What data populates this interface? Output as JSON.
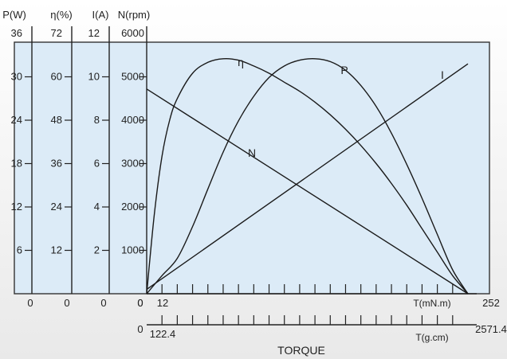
{
  "chart_data": {
    "type": "line",
    "title": "",
    "xlabel": "TORQUE",
    "x_axes": [
      {
        "unit": "T(mN.m)",
        "min": 0,
        "max": 252,
        "tick_step": 12,
        "tick_labels": [
          "0",
          "12",
          "252"
        ]
      },
      {
        "unit": "T(g.cm)",
        "min": 0,
        "max": 2571.4,
        "tick_step": 122.4,
        "tick_labels": [
          "0",
          "122.4",
          "2571.4"
        ]
      }
    ],
    "y_axes": [
      {
        "label": "P(W)",
        "min": 0,
        "max": 36,
        "ticks": [
          "0",
          "6",
          "12",
          "18",
          "24",
          "30",
          "36"
        ]
      },
      {
        "label": "η(%)",
        "min": 0,
        "max": 72,
        "ticks": [
          "0",
          "12",
          "24",
          "36",
          "48",
          "60",
          "72"
        ]
      },
      {
        "label": "I(A)",
        "min": 0,
        "max": 12,
        "ticks": [
          "0",
          "2",
          "4",
          "6",
          "8",
          "10",
          "12"
        ]
      },
      {
        "label": "N(rpm)",
        "min": 0,
        "max": 6000,
        "ticks": [
          "0",
          "1000",
          "2000",
          "3000",
          "4000",
          "5000",
          "6000"
        ]
      }
    ],
    "series": [
      {
        "name": "P",
        "axis": "P(W)",
        "x": [
          0,
          12,
          24,
          36,
          48,
          60,
          72,
          84,
          96,
          108,
          120,
          132,
          144,
          156,
          168,
          180,
          192,
          204,
          216,
          228,
          240,
          252
        ],
        "y": [
          0,
          2.5,
          4.9,
          9.3,
          14.5,
          19.6,
          23.9,
          27.3,
          29.9,
          31.5,
          32.3,
          32.5,
          32.1,
          30.9,
          28.8,
          25.9,
          22.2,
          17.9,
          13.2,
          8.2,
          3.3,
          0
        ]
      },
      {
        "name": "η",
        "axis": "η(%)",
        "x": [
          0,
          6,
          12,
          18,
          24,
          36,
          48,
          60,
          72,
          84,
          96,
          108,
          120,
          132,
          144,
          156,
          168,
          180,
          192,
          204,
          216,
          228,
          240,
          252
        ],
        "y": [
          0,
          22,
          38,
          48,
          54,
          61,
          64,
          65,
          64.6,
          63,
          61,
          58.5,
          56,
          53,
          49.5,
          45.5,
          41,
          36,
          30.5,
          24.5,
          18,
          11.5,
          5,
          0
        ]
      },
      {
        "name": "I",
        "axis": "I(A)",
        "x": [
          0,
          252
        ],
        "y": [
          0.2,
          10.6
        ]
      },
      {
        "name": "N",
        "axis": "N(rpm)",
        "x": [
          0,
          252
        ],
        "y": [
          4720,
          0
        ]
      }
    ]
  }
}
